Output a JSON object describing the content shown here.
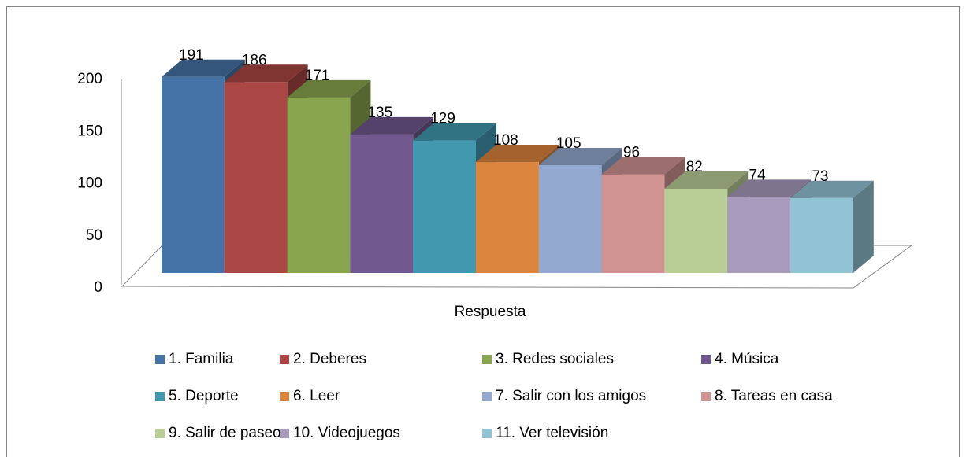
{
  "chart_data": {
    "type": "bar",
    "xlabel": "Respuesta",
    "categories": [
      "Respuesta"
    ],
    "series": [
      {
        "name": "1. Familia",
        "color": "#4572a7",
        "values": [
          191
        ]
      },
      {
        "name": "2. Deberes",
        "color": "#aa4643",
        "values": [
          186
        ]
      },
      {
        "name": "3. Redes sociales",
        "color": "#89a54e",
        "values": [
          171
        ]
      },
      {
        "name": "4. Música",
        "color": "#71588f",
        "values": [
          135
        ]
      },
      {
        "name": "5. Deporte",
        "color": "#4198af",
        "values": [
          129
        ]
      },
      {
        "name": "6. Leer",
        "color": "#db843d",
        "values": [
          108
        ]
      },
      {
        "name": "7. Salir con los amigos",
        "color": "#93a9cf",
        "values": [
          105
        ]
      },
      {
        "name": "8. Tareas en casa",
        "color": "#d19392",
        "values": [
          96
        ]
      },
      {
        "name": "9. Salir de paseo",
        "color": "#b9cd96",
        "values": [
          82
        ]
      },
      {
        "name": "10. Videojuegos",
        "color": "#a99bbd",
        "values": [
          74
        ]
      },
      {
        "name": "11. Ver televisión",
        "color": "#92c3d4",
        "values": [
          73
        ]
      }
    ],
    "ylim": [
      0,
      200
    ],
    "yticks": [
      0,
      50,
      100,
      150,
      200
    ],
    "legend": "bottom"
  }
}
